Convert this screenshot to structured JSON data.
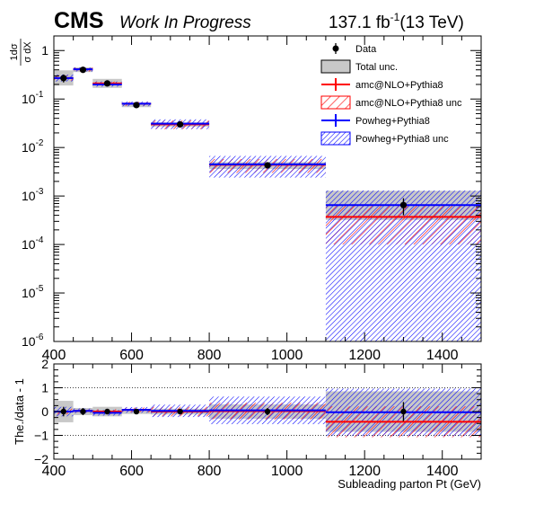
{
  "header": {
    "experiment": "CMS",
    "status": "Work In Progress",
    "lumi_prefix": "137.1 fb",
    "lumi_exp": "-1",
    "lumi_suffix": "(13 TeV)"
  },
  "chart_data": [
    {
      "type": "scatter",
      "panel": "main",
      "yscale": "log",
      "xlim": [
        400,
        1500
      ],
      "ylim": [
        1e-06,
        2
      ],
      "xlabel": "",
      "ylabel_num": "1dσ",
      "ylabel_den": "σ dX",
      "x_ticks": [
        "400",
        "600",
        "800",
        "1000",
        "1200",
        "1400"
      ],
      "y_ticks": [
        "10",
        "10",
        "10",
        "10",
        "10",
        "10",
        "1"
      ],
      "y_tick_exps": [
        "-6",
        "-5",
        "-4",
        "-3",
        "-2",
        "-1",
        ""
      ],
      "bins": [
        [
          400,
          450
        ],
        [
          450,
          500
        ],
        [
          500,
          575
        ],
        [
          575,
          650
        ],
        [
          650,
          800
        ],
        [
          800,
          1100
        ],
        [
          1100,
          1500
        ]
      ],
      "data": [
        0.27,
        0.4,
        0.21,
        0.075,
        0.03,
        0.0043,
        0.00065
      ],
      "data_err": [
        0.05,
        0.05,
        0.025,
        0.007,
        0.003,
        0.0006,
        0.00025
      ],
      "total_unc": [
        [
          0.19,
          0.39
        ],
        [
          0.36,
          0.45
        ],
        [
          0.17,
          0.26
        ],
        [
          0.068,
          0.083
        ],
        [
          0.027,
          0.033
        ],
        [
          0.0036,
          0.005
        ],
        [
          0.00032,
          0.00128
        ]
      ],
      "amcnlo": [
        0.27,
        0.41,
        0.21,
        0.08,
        0.03,
        0.0044,
        0.00037
      ],
      "amcnlo_unc": [
        [
          0.24,
          0.31
        ],
        [
          0.37,
          0.45
        ],
        [
          0.19,
          0.23
        ],
        [
          0.072,
          0.088
        ],
        [
          0.024,
          0.036
        ],
        [
          0.003,
          0.0058
        ],
        [
          0.0001,
          0.00065
        ]
      ],
      "powheg": [
        0.27,
        0.41,
        0.2,
        0.08,
        0.031,
        0.0045,
        0.00065
      ],
      "powheg_unc": [
        [
          0.23,
          0.32
        ],
        [
          0.37,
          0.45
        ],
        [
          0.18,
          0.23
        ],
        [
          0.071,
          0.089
        ],
        [
          0.024,
          0.038
        ],
        [
          0.0024,
          0.0067
        ],
        [
          1e-06,
          0.0013
        ]
      ],
      "legend": {
        "placement": "top-right",
        "entries": [
          "Data",
          "Total unc.",
          "amc@NLO+Pythia8",
          "amc@NLO+Pythia8 unc",
          "Powheg+Pythia8",
          "Powheg+Pythia8 unc"
        ]
      },
      "colors": {
        "data": "#000000",
        "total_unc": "#c8c8c8",
        "amcnlo": "#ff0000",
        "powheg": "#0000ff"
      }
    },
    {
      "type": "scatter",
      "panel": "ratio",
      "xlim": [
        400,
        1500
      ],
      "ylim": [
        -2,
        2
      ],
      "xlabel": "Subleading parton Pt (GeV)",
      "ylabel": "The./data - 1",
      "x_ticks": [
        "400",
        "600",
        "800",
        "1000",
        "1200",
        "1400"
      ],
      "y_ticks": [
        "−2",
        "−1",
        "0",
        "1",
        "2"
      ],
      "gridlines_y": [
        -1,
        1
      ],
      "data_err": [
        0.2,
        0.15,
        0.1,
        0.1,
        0.1,
        0.15,
        0.4
      ],
      "total_unc": [
        0.45,
        0.15,
        0.2,
        0.1,
        0.12,
        0.3,
        0.85
      ],
      "amcnlo": [
        0.0,
        0.03,
        0.0,
        0.07,
        0.0,
        0.02,
        -0.43
      ],
      "amcnlo_unc": [
        0.12,
        0.05,
        0.1,
        0.1,
        0.2,
        0.35,
        0.65
      ],
      "powheg": [
        0.0,
        0.03,
        -0.05,
        0.07,
        0.03,
        0.05,
        -0.03
      ],
      "powheg_unc": [
        0.2,
        0.1,
        0.12,
        0.12,
        0.26,
        0.58,
        1.0
      ]
    }
  ]
}
